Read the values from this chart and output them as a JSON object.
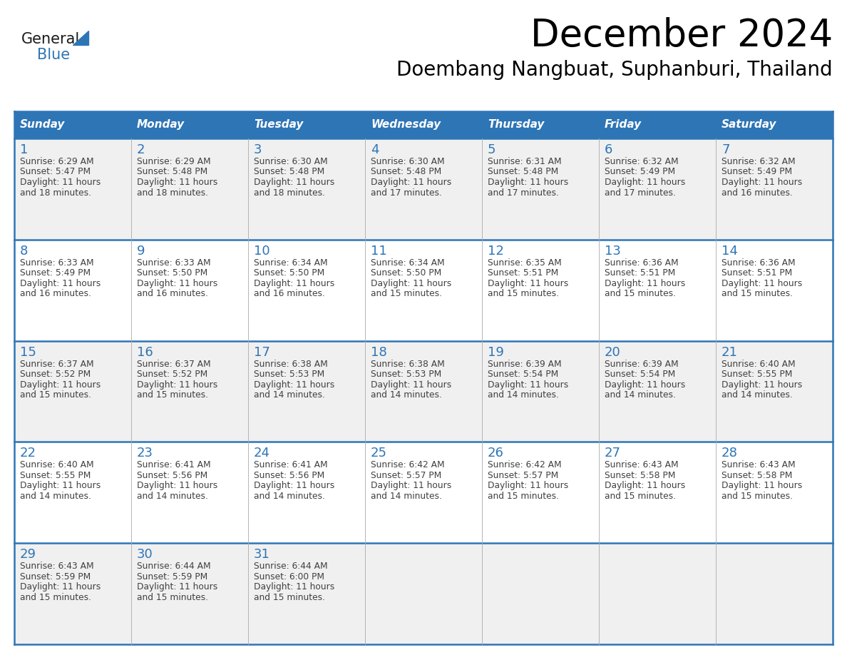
{
  "title": "December 2024",
  "subtitle": "Doembang Nangbuat, Suphanburi, Thailand",
  "header_bg_color": "#2E75B6",
  "header_text_color": "#FFFFFF",
  "day_names": [
    "Sunday",
    "Monday",
    "Tuesday",
    "Wednesday",
    "Thursday",
    "Friday",
    "Saturday"
  ],
  "row_bg_even": "#F0F0F0",
  "row_bg_odd": "#FFFFFF",
  "cell_border_color": "#2E75B6",
  "date_text_color": "#2E75B6",
  "info_text_color": "#404040",
  "logo_blue": "#2E75B6",
  "logo_dark": "#1a1a1a",
  "days": [
    {
      "date": 1,
      "col": 0,
      "row": 0,
      "sunrise": "6:29 AM",
      "sunset": "5:47 PM",
      "daylight_min": "18"
    },
    {
      "date": 2,
      "col": 1,
      "row": 0,
      "sunrise": "6:29 AM",
      "sunset": "5:48 PM",
      "daylight_min": "18"
    },
    {
      "date": 3,
      "col": 2,
      "row": 0,
      "sunrise": "6:30 AM",
      "sunset": "5:48 PM",
      "daylight_min": "18"
    },
    {
      "date": 4,
      "col": 3,
      "row": 0,
      "sunrise": "6:30 AM",
      "sunset": "5:48 PM",
      "daylight_min": "17"
    },
    {
      "date": 5,
      "col": 4,
      "row": 0,
      "sunrise": "6:31 AM",
      "sunset": "5:48 PM",
      "daylight_min": "17"
    },
    {
      "date": 6,
      "col": 5,
      "row": 0,
      "sunrise": "6:32 AM",
      "sunset": "5:49 PM",
      "daylight_min": "17"
    },
    {
      "date": 7,
      "col": 6,
      "row": 0,
      "sunrise": "6:32 AM",
      "sunset": "5:49 PM",
      "daylight_min": "16"
    },
    {
      "date": 8,
      "col": 0,
      "row": 1,
      "sunrise": "6:33 AM",
      "sunset": "5:49 PM",
      "daylight_min": "16"
    },
    {
      "date": 9,
      "col": 1,
      "row": 1,
      "sunrise": "6:33 AM",
      "sunset": "5:50 PM",
      "daylight_min": "16"
    },
    {
      "date": 10,
      "col": 2,
      "row": 1,
      "sunrise": "6:34 AM",
      "sunset": "5:50 PM",
      "daylight_min": "16"
    },
    {
      "date": 11,
      "col": 3,
      "row": 1,
      "sunrise": "6:34 AM",
      "sunset": "5:50 PM",
      "daylight_min": "15"
    },
    {
      "date": 12,
      "col": 4,
      "row": 1,
      "sunrise": "6:35 AM",
      "sunset": "5:51 PM",
      "daylight_min": "15"
    },
    {
      "date": 13,
      "col": 5,
      "row": 1,
      "sunrise": "6:36 AM",
      "sunset": "5:51 PM",
      "daylight_min": "15"
    },
    {
      "date": 14,
      "col": 6,
      "row": 1,
      "sunrise": "6:36 AM",
      "sunset": "5:51 PM",
      "daylight_min": "15"
    },
    {
      "date": 15,
      "col": 0,
      "row": 2,
      "sunrise": "6:37 AM",
      "sunset": "5:52 PM",
      "daylight_min": "15"
    },
    {
      "date": 16,
      "col": 1,
      "row": 2,
      "sunrise": "6:37 AM",
      "sunset": "5:52 PM",
      "daylight_min": "15"
    },
    {
      "date": 17,
      "col": 2,
      "row": 2,
      "sunrise": "6:38 AM",
      "sunset": "5:53 PM",
      "daylight_min": "14"
    },
    {
      "date": 18,
      "col": 3,
      "row": 2,
      "sunrise": "6:38 AM",
      "sunset": "5:53 PM",
      "daylight_min": "14"
    },
    {
      "date": 19,
      "col": 4,
      "row": 2,
      "sunrise": "6:39 AM",
      "sunset": "5:54 PM",
      "daylight_min": "14"
    },
    {
      "date": 20,
      "col": 5,
      "row": 2,
      "sunrise": "6:39 AM",
      "sunset": "5:54 PM",
      "daylight_min": "14"
    },
    {
      "date": 21,
      "col": 6,
      "row": 2,
      "sunrise": "6:40 AM",
      "sunset": "5:55 PM",
      "daylight_min": "14"
    },
    {
      "date": 22,
      "col": 0,
      "row": 3,
      "sunrise": "6:40 AM",
      "sunset": "5:55 PM",
      "daylight_min": "14"
    },
    {
      "date": 23,
      "col": 1,
      "row": 3,
      "sunrise": "6:41 AM",
      "sunset": "5:56 PM",
      "daylight_min": "14"
    },
    {
      "date": 24,
      "col": 2,
      "row": 3,
      "sunrise": "6:41 AM",
      "sunset": "5:56 PM",
      "daylight_min": "14"
    },
    {
      "date": 25,
      "col": 3,
      "row": 3,
      "sunrise": "6:42 AM",
      "sunset": "5:57 PM",
      "daylight_min": "14"
    },
    {
      "date": 26,
      "col": 4,
      "row": 3,
      "sunrise": "6:42 AM",
      "sunset": "5:57 PM",
      "daylight_min": "15"
    },
    {
      "date": 27,
      "col": 5,
      "row": 3,
      "sunrise": "6:43 AM",
      "sunset": "5:58 PM",
      "daylight_min": "15"
    },
    {
      "date": 28,
      "col": 6,
      "row": 3,
      "sunrise": "6:43 AM",
      "sunset": "5:58 PM",
      "daylight_min": "15"
    },
    {
      "date": 29,
      "col": 0,
      "row": 4,
      "sunrise": "6:43 AM",
      "sunset": "5:59 PM",
      "daylight_min": "15"
    },
    {
      "date": 30,
      "col": 1,
      "row": 4,
      "sunrise": "6:44 AM",
      "sunset": "5:59 PM",
      "daylight_min": "15"
    },
    {
      "date": 31,
      "col": 2,
      "row": 4,
      "sunrise": "6:44 AM",
      "sunset": "6:00 PM",
      "daylight_min": "15"
    }
  ]
}
